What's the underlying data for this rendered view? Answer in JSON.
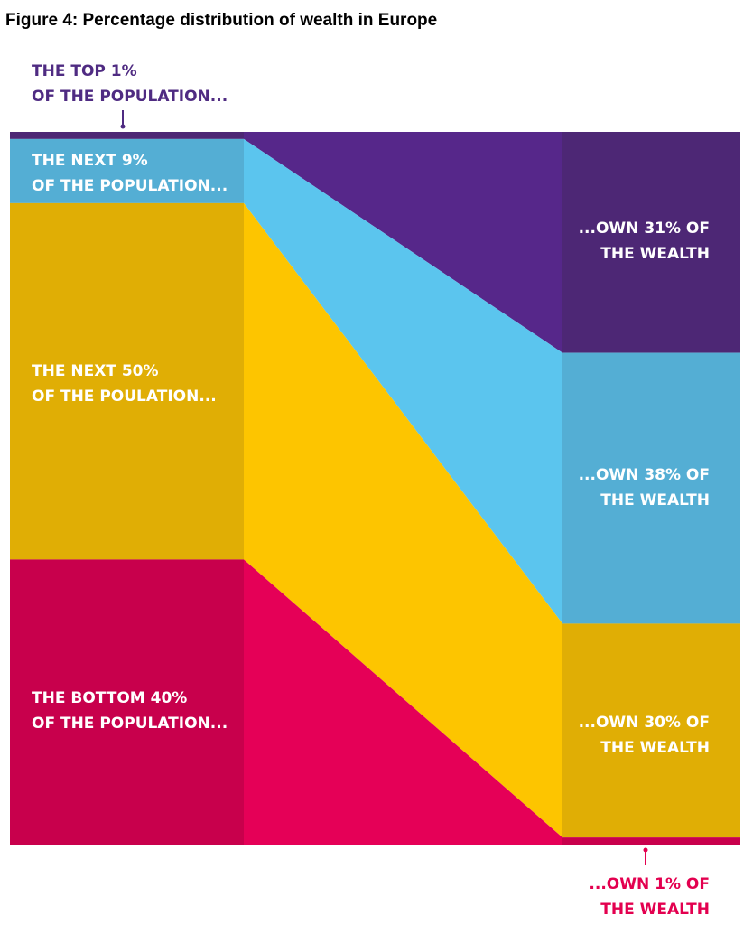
{
  "figure_title": "Figure 4: Percentage distribution of wealth in Europe",
  "colors": {
    "top1_left": "#4d2775",
    "top1_band": "#56278a",
    "top1_right": "#4d2775",
    "next9_left": "#54aed4",
    "next9_band": "#5bc5ee",
    "next9_right": "#54aed4",
    "next50_left": "#e0ae05",
    "next50_band": "#fdc500",
    "next50_right": "#e0ae05",
    "bottom40_left": "#c8004c",
    "bottom40_band": "#e50057",
    "bottom40_right": "#c8004c",
    "label_purple": "#4f2b82",
    "label_pink": "#e3004f"
  },
  "chart_data": {
    "type": "alluvial",
    "title": "Figure 4: Percentage distribution of wealth in Europe",
    "groups": [
      {
        "key": "top1",
        "population_share": 1,
        "wealth_share": 31,
        "population_label": [
          "THE TOP 1%",
          "OF THE POPULATION..."
        ],
        "wealth_label": [
          "...OWN 31% OF",
          "THE WEALTH"
        ]
      },
      {
        "key": "next9",
        "population_share": 9,
        "wealth_share": 38,
        "population_label": [
          "THE NEXT 9%",
          "OF THE POPULATION..."
        ],
        "wealth_label": [
          "...OWN 38% OF",
          "THE WEALTH"
        ]
      },
      {
        "key": "next50",
        "population_share": 50,
        "wealth_share": 30,
        "population_label": [
          "THE NEXT 50%",
          "OF THE POULATION..."
        ],
        "wealth_label": [
          "...OWN 30% OF",
          "THE WEALTH"
        ]
      },
      {
        "key": "bottom40",
        "population_share": 40,
        "wealth_share": 1,
        "population_label": [
          "THE BOTTOM 40%",
          "OF THE POPULATION..."
        ],
        "wealth_label": [
          "...OWN 1% OF",
          "THE WEALTH"
        ]
      }
    ]
  }
}
